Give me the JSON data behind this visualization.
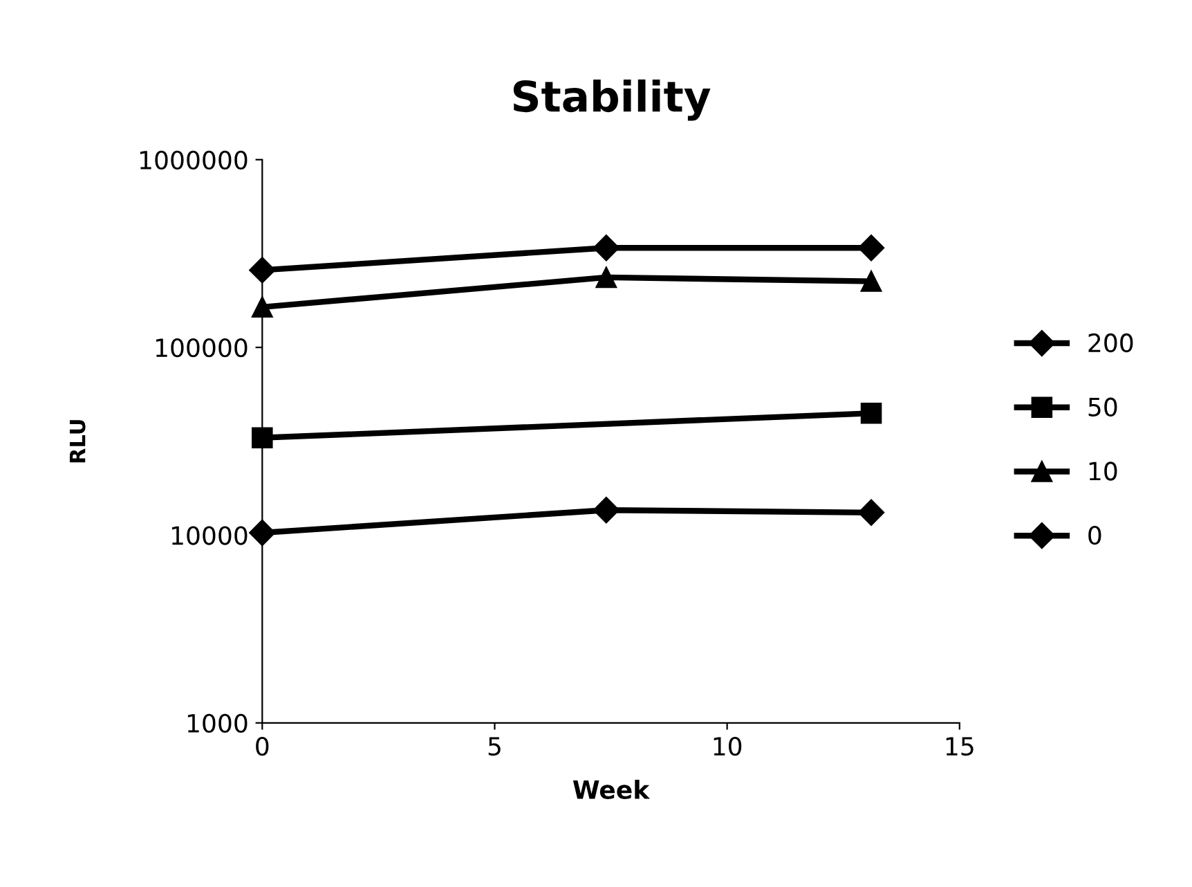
{
  "chart_data": {
    "type": "line",
    "title": "Stability",
    "xlabel": "Week",
    "ylabel": "RLU",
    "log": "y",
    "grid": false,
    "legend": "right",
    "line_style": "solid",
    "x": [
      0,
      7.4,
      13.1
    ],
    "series": [
      {
        "name": "200",
        "color": "#000000",
        "marker": "diamond",
        "values": [
          258000,
          339000,
          339000
        ]
      },
      {
        "name": "50",
        "color": "#000000",
        "marker": "square",
        "x": [
          0,
          13.1
        ],
        "values": [
          33000,
          44600
        ]
      },
      {
        "name": "10",
        "color": "#000000",
        "marker": "triangle",
        "values": [
          164000,
          236000,
          225000
        ]
      },
      {
        "name": "0",
        "color": "#000000",
        "marker": "diamond",
        "values": [
          10300,
          13600,
          13200
        ]
      }
    ],
    "xlim": [
      0,
      15
    ],
    "xticks": [
      0,
      5,
      10,
      15
    ],
    "ylim": [
      1000,
      1000000
    ],
    "yticks": [
      1000,
      10000,
      100000,
      1000000
    ]
  }
}
